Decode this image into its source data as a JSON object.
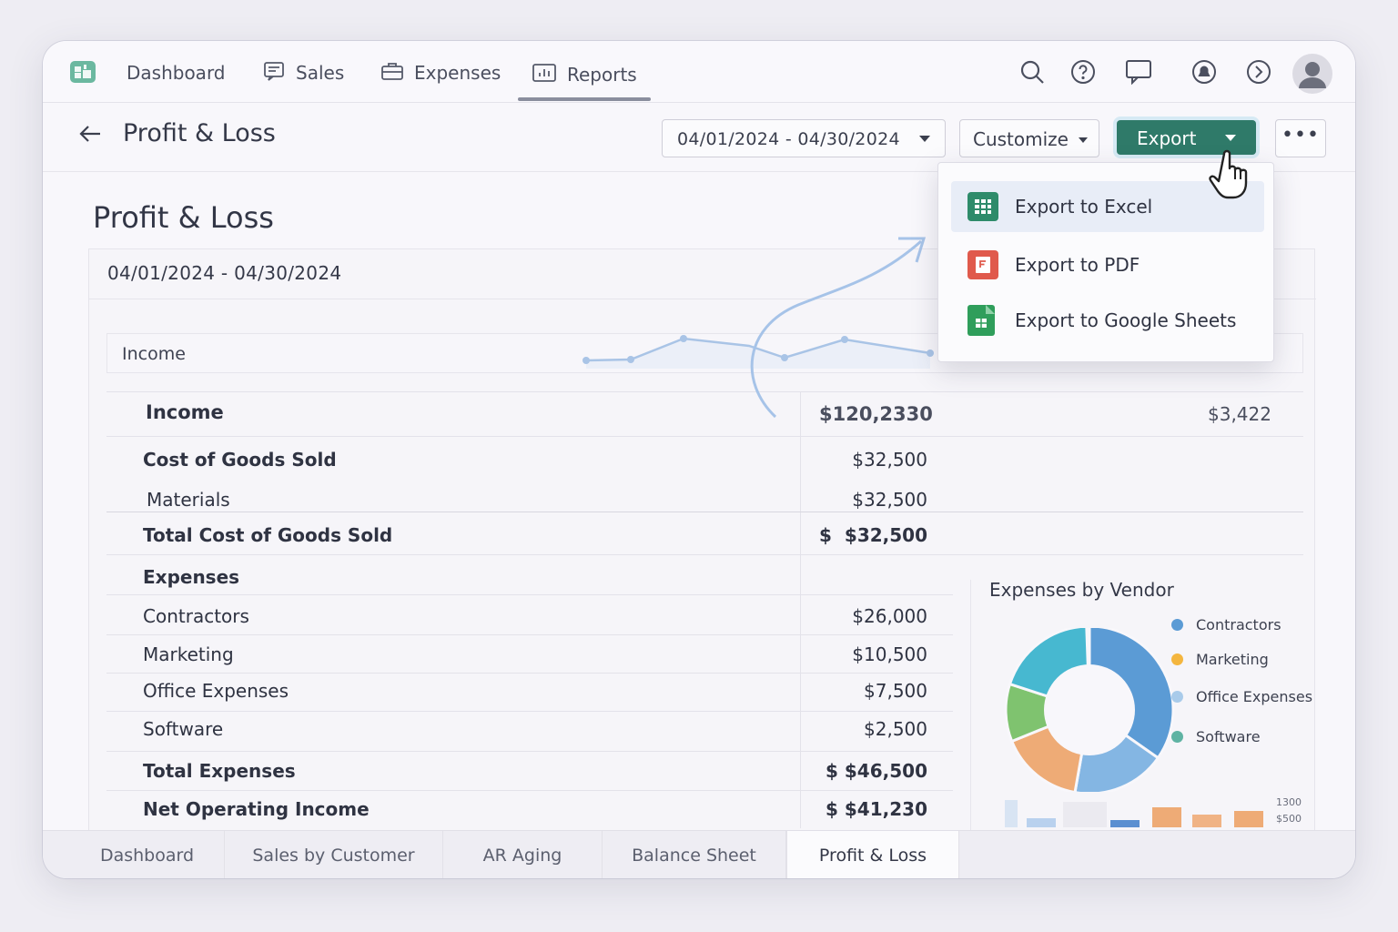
{
  "nav": {
    "items": [
      {
        "label": "Dashboard",
        "icon": "dashboard-icon"
      },
      {
        "label": "Sales",
        "icon": "receipt-icon"
      },
      {
        "label": "Expenses",
        "icon": "briefcase-icon"
      },
      {
        "label": "Reports",
        "icon": "report-chart-icon"
      }
    ],
    "active": "Reports"
  },
  "header": {
    "back_icon": "arrow-left-icon",
    "title": "Profit & Loss",
    "date_range": "04/01/2024 - 04/30/2024",
    "customize_label": "Customize",
    "export_label": "Export",
    "more_label": "•••"
  },
  "export_menu": {
    "items": [
      {
        "label": "Export to Excel",
        "icon": "excel-icon",
        "color": "#2e8b6a"
      },
      {
        "label": "Export to PDF",
        "icon": "pdf-icon",
        "color": "#e05a4c"
      },
      {
        "label": "Export to Google Sheets",
        "icon": "google-sheets-icon",
        "color": "#2f9e5b"
      }
    ]
  },
  "report": {
    "title": "Profit & Loss",
    "period": "04/01/2024 - 04/30/2024",
    "income_section_label": "Income",
    "rows": {
      "income": {
        "label": "Income",
        "value": "$120,2330",
        "value2": "$3,422"
      },
      "cogs": {
        "label": "Cost of Goods Sold",
        "value": "$32,500"
      },
      "materials": {
        "label": "Materials",
        "value": "$32,500"
      },
      "total_cogs": {
        "label": "Total Cost of Goods Sold",
        "currency": "$",
        "value": "$32,500"
      },
      "expenses": {
        "label": "Expenses"
      },
      "contractors": {
        "label": "Contractors",
        "value": "$26,000"
      },
      "marketing": {
        "label": "Marketing",
        "value": "$10,500"
      },
      "office": {
        "label": "Office Expenses",
        "value": "$7,500"
      },
      "software": {
        "label": "Software",
        "value": "$2,500"
      },
      "total_expenses": {
        "label": "Total Expenses",
        "value": "$ $46,500"
      },
      "net_operating": {
        "label": "Net Operating Income",
        "value": "$ $41,230"
      }
    }
  },
  "chart_data": {
    "type": "pie",
    "title": "Expenses by Vendor",
    "categories": [
      "Contractors",
      "Marketing",
      "Office Expenses",
      "Software"
    ],
    "legend_colors": [
      "#5b9bd5",
      "#f4b63f",
      "#a9cbea",
      "#5fb3a3"
    ],
    "legend_placement": "right",
    "mini_bar_labels": [
      "1300",
      "$500"
    ]
  },
  "bottom_tabs": {
    "items": [
      "Dashboard",
      "Sales by Customer",
      "AR Aging",
      "Balance Sheet",
      "Profit & Loss"
    ],
    "active": "Profit & Loss"
  }
}
